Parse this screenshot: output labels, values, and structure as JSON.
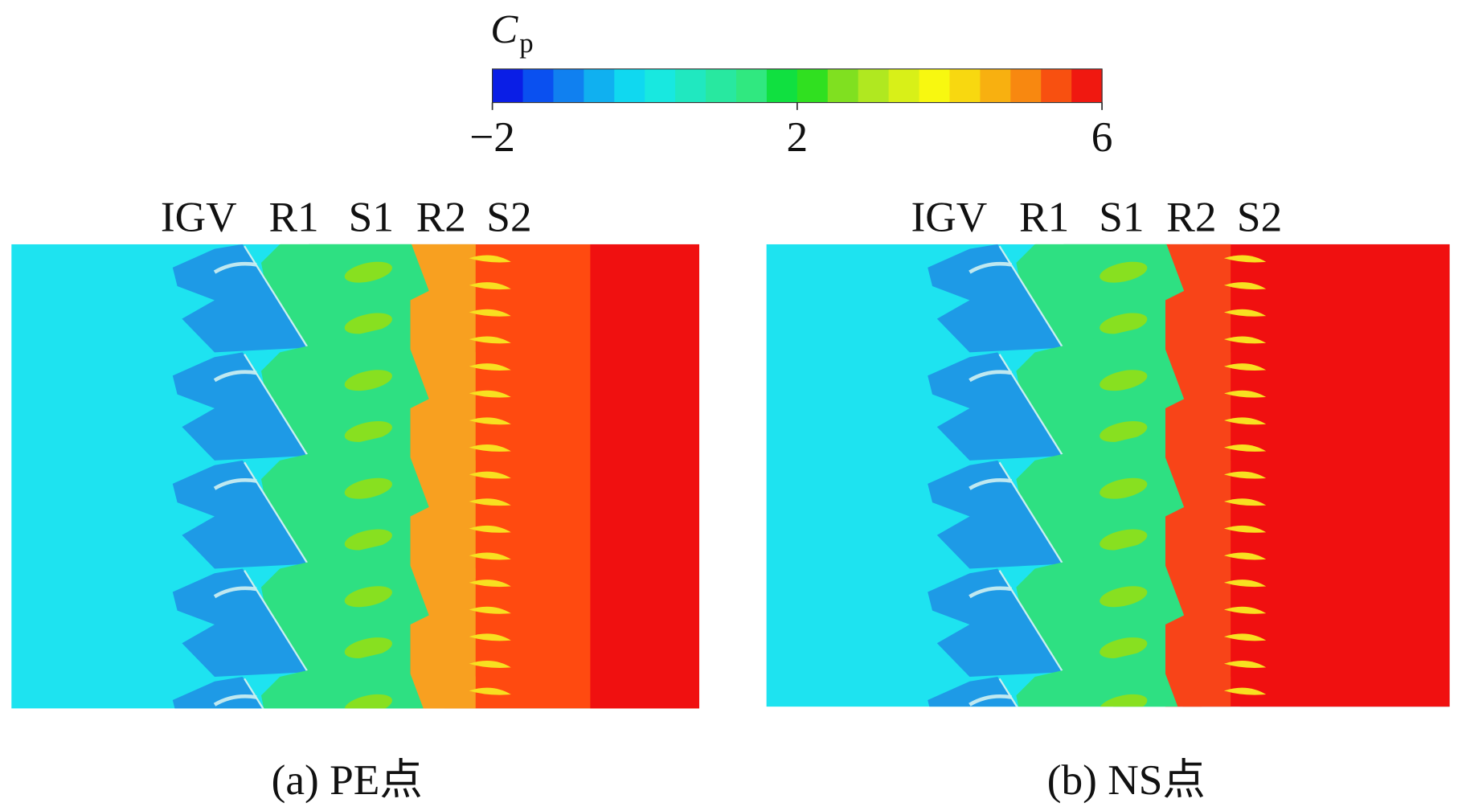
{
  "colorbar": {
    "label": "C",
    "label_sub": "p",
    "range": [
      -2,
      6
    ],
    "ticks": [
      {
        "value": -2,
        "label": "−2"
      },
      2,
      6
    ]
  },
  "panels": [
    {
      "blades": [
        "IGV",
        "R1",
        "S1",
        "R2",
        "S2"
      ],
      "caption": "(a) PE点"
    },
    {
      "blades": [
        "IGV",
        "R1",
        "S1",
        "R2",
        "S2"
      ],
      "caption": "(b) NS点"
    }
  ]
}
